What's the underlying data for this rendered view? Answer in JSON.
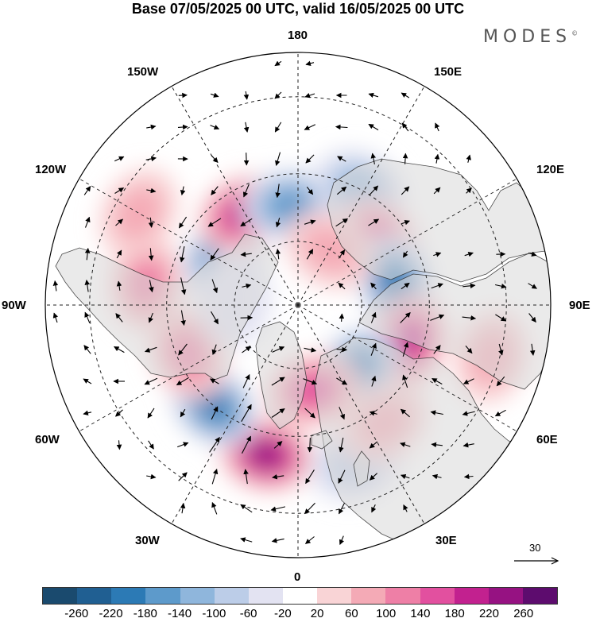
{
  "title": "Base 07/05/2025 00 UTC, valid 16/05/2025 00 UTC",
  "logo": "MODES",
  "logo_mark": "©",
  "longitude_labels": [
    "180",
    "150E",
    "120E",
    "90E",
    "60E",
    "30E",
    "0",
    "30W",
    "60W",
    "90W",
    "120W",
    "150W"
  ],
  "reference_vector": "30",
  "colorbar": {
    "colors": [
      "#1a4a6e",
      "#205f92",
      "#2c7ab5",
      "#5d9acb",
      "#8fb6dc",
      "#bccde8",
      "#e3e3f2",
      "#ffffff",
      "#f9d4d6",
      "#f4aab6",
      "#ee7fa6",
      "#e2509f",
      "#c2218f",
      "#961282",
      "#5d0c6e"
    ],
    "tick_labels": [
      "-260",
      "-220",
      "-180",
      "-140",
      "-100",
      "-60",
      "-20",
      "20",
      "60",
      "100",
      "140",
      "180",
      "220",
      "260"
    ]
  },
  "anomalies": [
    {
      "lat": 62,
      "lon": -123,
      "value": -200
    },
    {
      "lat": 57,
      "lon": -149,
      "value": 210
    },
    {
      "lat": 59,
      "lon": -175,
      "value": -170
    },
    {
      "lat": 50,
      "lon": 152,
      "value": -120
    },
    {
      "lat": 58,
      "lon": 128,
      "value": 170
    },
    {
      "lat": 59,
      "lon": 103,
      "value": -190
    },
    {
      "lat": 54,
      "lon": 72,
      "value": 200
    },
    {
      "lat": 63,
      "lon": 42,
      "value": -180
    },
    {
      "lat": 63,
      "lon": 10,
      "value": 140
    },
    {
      "lat": 44,
      "lon": -12,
      "value": 220
    },
    {
      "lat": 50,
      "lon": -40,
      "value": -210
    },
    {
      "lat": 53,
      "lon": -66,
      "value": 120
    },
    {
      "lat": 44,
      "lon": -98,
      "value": 100
    },
    {
      "lat": 40,
      "lon": 20,
      "value": -60
    },
    {
      "lat": 46,
      "lon": 36,
      "value": 60
    },
    {
      "lat": 32,
      "lon": 75,
      "value": 80
    },
    {
      "lat": 70,
      "lon": -95,
      "value": -40
    },
    {
      "lat": 70,
      "lon": 150,
      "value": 60
    },
    {
      "lat": 36,
      "lon": -120,
      "value": 60
    }
  ]
}
